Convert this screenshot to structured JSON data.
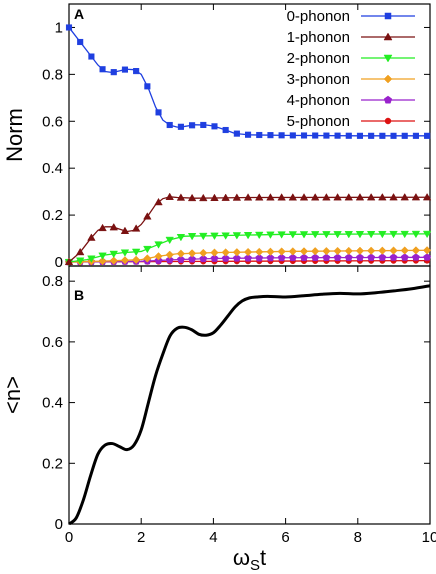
{
  "chart_data": [
    {
      "panel_label": "A",
      "type": "line",
      "ylabel": "Norm",
      "xlim": [
        0,
        10
      ],
      "ylim": [
        0,
        1.1
      ],
      "yticks": [
        0,
        0.2,
        0.4,
        0.6,
        0.8,
        1
      ],
      "ytick_labels": [
        "0",
        "0.2",
        "0.4",
        "0.6",
        "0.8",
        "1"
      ],
      "legend_position": "top-right",
      "markers_every": 0.31,
      "series": [
        {
          "name": "0-phonon",
          "color": "#1f3fe0",
          "marker": "square",
          "x": [
            0,
            0.5,
            0.8,
            1.0,
            1.2,
            1.4,
            1.6,
            1.8,
            2.0,
            2.2,
            2.4,
            2.6,
            2.8,
            3.0,
            3.2,
            3.5,
            3.8,
            4.0,
            4.3,
            4.6,
            5.0,
            6.0,
            8.0,
            10.0
          ],
          "y": [
            1.0,
            0.9,
            0.84,
            0.812,
            0.808,
            0.815,
            0.822,
            0.82,
            0.8,
            0.74,
            0.66,
            0.605,
            0.583,
            0.575,
            0.578,
            0.585,
            0.584,
            0.58,
            0.565,
            0.548,
            0.542,
            0.54,
            0.538,
            0.538
          ]
        },
        {
          "name": "1-phonon",
          "color": "#7a1111",
          "marker": "triangle",
          "x": [
            0,
            0.3,
            0.6,
            0.8,
            1.0,
            1.2,
            1.4,
            1.6,
            1.8,
            2.0,
            2.2,
            2.4,
            2.6,
            2.8,
            3.0,
            3.5,
            4.0,
            5.0,
            10.0
          ],
          "y": [
            0.0,
            0.04,
            0.1,
            0.135,
            0.15,
            0.15,
            0.14,
            0.13,
            0.135,
            0.16,
            0.2,
            0.245,
            0.27,
            0.278,
            0.275,
            0.272,
            0.273,
            0.275,
            0.276
          ]
        },
        {
          "name": "2-phonon",
          "color": "#22ee22",
          "marker": "triangle-down",
          "x": [
            0,
            0.5,
            1.0,
            1.5,
            2.0,
            2.4,
            2.8,
            3.2,
            4.0,
            5.0,
            6.0,
            10.0
          ],
          "y": [
            0.0,
            0.01,
            0.03,
            0.04,
            0.045,
            0.07,
            0.095,
            0.11,
            0.112,
            0.115,
            0.118,
            0.12
          ]
        },
        {
          "name": "3-phonon",
          "color": "#f0a020",
          "marker": "diamond",
          "x": [
            0,
            1.0,
            2.0,
            2.5,
            3.0,
            4.0,
            6.0,
            10.0
          ],
          "y": [
            0.0,
            0.004,
            0.01,
            0.025,
            0.035,
            0.04,
            0.045,
            0.05
          ]
        },
        {
          "name": "4-phonon",
          "color": "#9922cc",
          "marker": "pentagon",
          "x": [
            0,
            2.0,
            3.0,
            4.0,
            6.0,
            10.0
          ],
          "y": [
            0.0,
            0.003,
            0.01,
            0.015,
            0.018,
            0.02
          ]
        },
        {
          "name": "5-phonon",
          "color": "#dd1111",
          "marker": "circle",
          "x": [
            0,
            3.0,
            6.0,
            10.0
          ],
          "y": [
            0.0,
            0.002,
            0.004,
            0.006
          ]
        }
      ]
    },
    {
      "panel_label": "B",
      "type": "line",
      "ylabel": "<n>",
      "xlabel": "ω",
      "xlabel_sub": "S",
      "xlabel_tail": "t",
      "xlim": [
        0,
        10
      ],
      "ylim": [
        0,
        0.85
      ],
      "xticks": [
        0,
        2,
        4,
        6,
        8,
        10
      ],
      "xtick_labels": [
        "0",
        "2",
        "4",
        "6",
        "8",
        "10"
      ],
      "yticks": [
        0,
        0.2,
        0.4,
        0.6,
        0.8
      ],
      "ytick_labels": [
        "0",
        "0.2",
        "0.4",
        "0.6",
        "0.8"
      ],
      "series": [
        {
          "color": "#000000",
          "x": [
            0,
            0.2,
            0.4,
            0.6,
            0.8,
            1.0,
            1.2,
            1.4,
            1.6,
            1.8,
            2.0,
            2.2,
            2.4,
            2.6,
            2.8,
            3.0,
            3.2,
            3.4,
            3.6,
            3.8,
            4.0,
            4.2,
            4.4,
            4.6,
            4.8,
            5.0,
            5.2,
            5.5,
            6.0,
            6.5,
            7.0,
            7.5,
            8.0,
            8.5,
            9.0,
            9.5,
            10.0
          ],
          "y": [
            0.0,
            0.02,
            0.08,
            0.16,
            0.23,
            0.26,
            0.265,
            0.255,
            0.245,
            0.26,
            0.31,
            0.4,
            0.49,
            0.56,
            0.62,
            0.645,
            0.648,
            0.64,
            0.625,
            0.622,
            0.63,
            0.655,
            0.685,
            0.715,
            0.735,
            0.745,
            0.748,
            0.75,
            0.748,
            0.752,
            0.757,
            0.76,
            0.758,
            0.762,
            0.768,
            0.775,
            0.785
          ]
        }
      ]
    }
  ]
}
